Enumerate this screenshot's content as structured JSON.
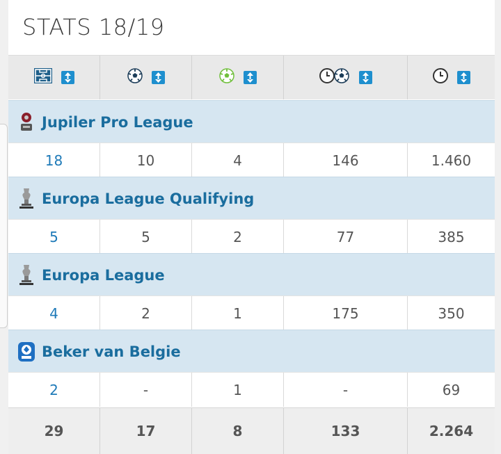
{
  "title": "STATS 18/19",
  "columns": [
    {
      "icon": "pitch-icon",
      "sort_icon": "sort-icon"
    },
    {
      "icon": "goal-ball-icon",
      "sort_icon": "sort-icon"
    },
    {
      "icon": "assist-ball-icon",
      "sort_icon": "sort-icon"
    },
    {
      "icon": "minutes-per-goal-icon",
      "sort_icon": "sort-icon"
    },
    {
      "icon": "minutes-played-icon",
      "sort_icon": "sort-icon"
    }
  ],
  "competitions": [
    {
      "name": "Jupiler Pro League",
      "logo": "jupiler-pro-league-logo",
      "values": [
        "18",
        "10",
        "4",
        "146",
        "1.460"
      ]
    },
    {
      "name": "Europa League Qualifying",
      "logo": "europa-league-trophy-logo",
      "values": [
        "5",
        "5",
        "2",
        "77",
        "385"
      ]
    },
    {
      "name": "Europa League",
      "logo": "europa-league-trophy-logo",
      "values": [
        "4",
        "2",
        "1",
        "175",
        "350"
      ]
    },
    {
      "name": "Beker van Belgie",
      "logo": "beker-van-belgie-logo",
      "values": [
        "2",
        "-",
        "1",
        "-",
        "69"
      ]
    }
  ],
  "totals": [
    "29",
    "17",
    "8",
    "133",
    "2.264"
  ],
  "colors": {
    "accent": "#1e8fce",
    "link": "#1a6d9e",
    "competition_bg": "#d6e6f1"
  }
}
